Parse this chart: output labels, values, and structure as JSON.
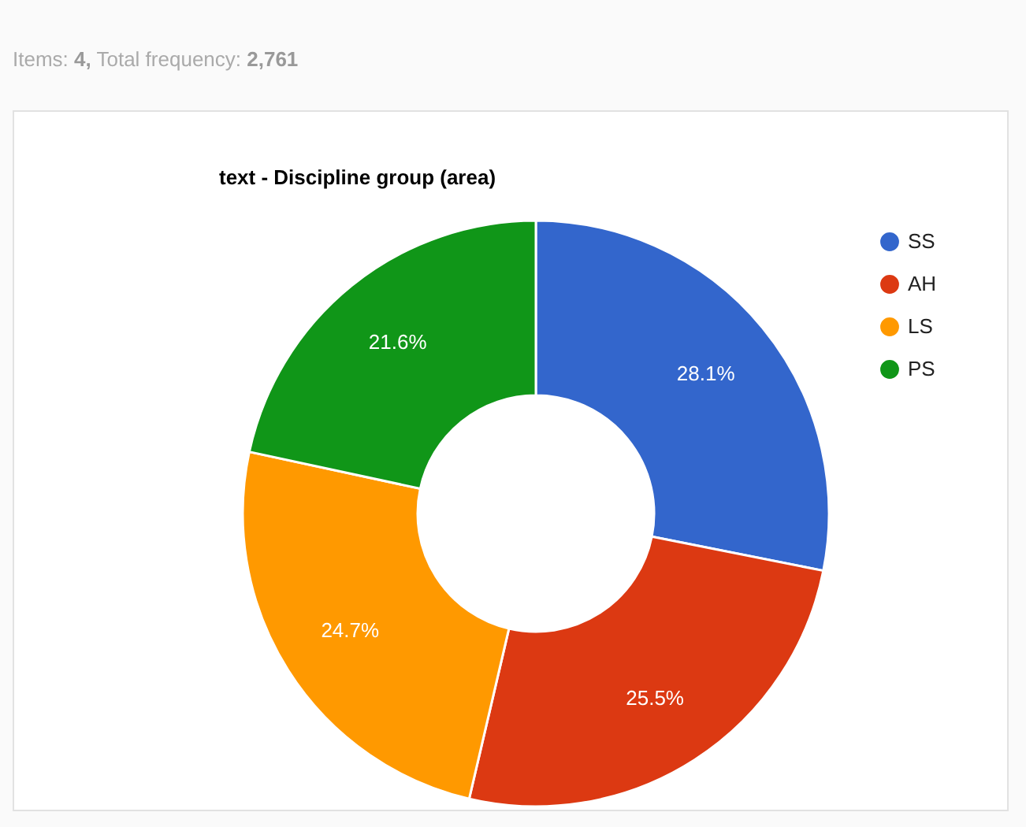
{
  "chart_data": {
    "type": "donut",
    "title": "text - Discipline group (area)",
    "annotations": [
      "Items: 4, Total frequency: 2,761"
    ],
    "categories": [
      "SS",
      "AH",
      "LS",
      "PS"
    ],
    "values": [
      28.1,
      25.5,
      24.7,
      21.6
    ],
    "value_labels": [
      "28.1%",
      "25.5%",
      "24.7%",
      "21.6%"
    ],
    "colors": [
      "#3366cc",
      "#dc3912",
      "#ff9900",
      "#109618"
    ],
    "legend": "top right"
  }
}
